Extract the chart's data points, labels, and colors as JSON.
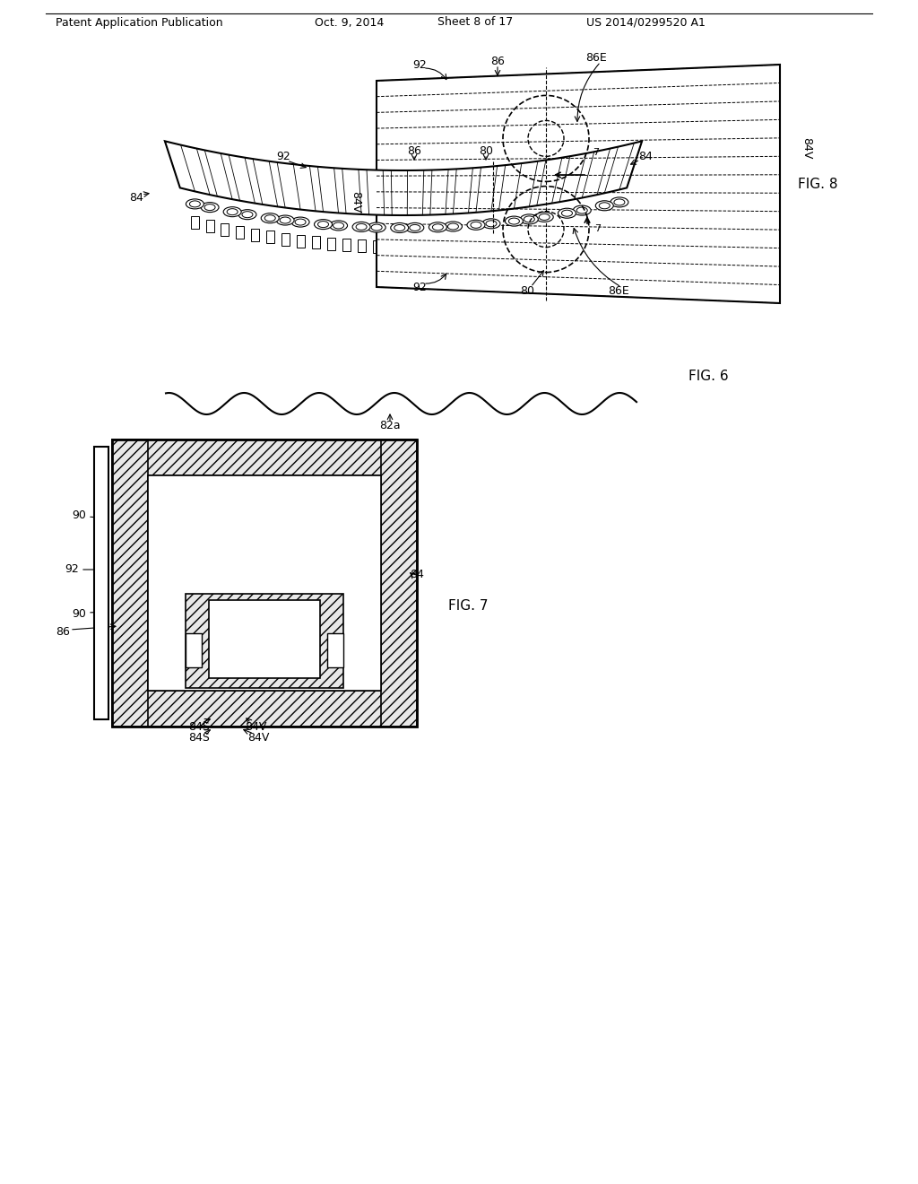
{
  "bg_color": "#ffffff",
  "header_text": "Patent Application Publication",
  "header_date": "Oct. 9, 2014",
  "header_sheet": "Sheet 8 of 17",
  "header_patent": "US 2014/0299520 A1",
  "fig6_label": "FIG. 6",
  "fig7_label": "FIG. 7",
  "fig8_label": "FIG. 8"
}
